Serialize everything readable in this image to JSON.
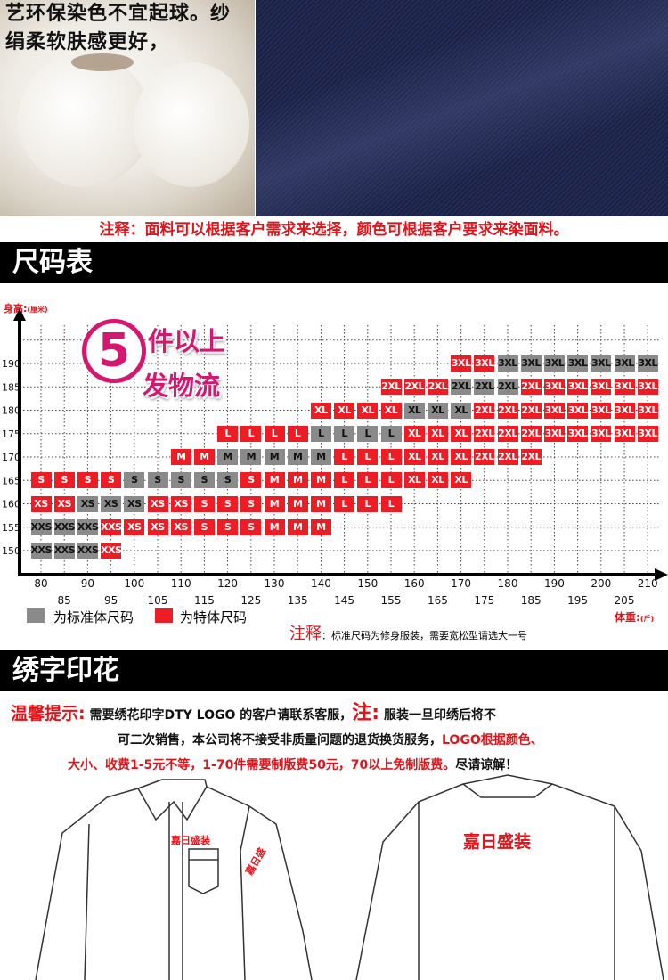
{
  "top": {
    "cotton_text_line1": "艺环保染色不宜起球。纱",
    "cotton_text_line2": "绢柔软肤感更好，",
    "fabric_note": "注释：面料可以根据客户需求来选择，颜色可根据客户要求来染面料。"
  },
  "size_section": {
    "title": "尺码表",
    "y_axis_label": "身高:",
    "y_axis_unit": "(厘米)",
    "x_axis_label": "体重:",
    "x_axis_unit": "(斤)",
    "promo_number": "5",
    "promo_line1": "件以上",
    "promo_line2": "发物流",
    "legend": [
      {
        "label": "为标准体尺码",
        "color": "#8a8a8a"
      },
      {
        "label": "为特体尺码",
        "color": "#ee1c24"
      }
    ],
    "note_label": "注释",
    "note_text": "：标准尺码为修身服装，需要宽松型请选大一号"
  },
  "chart_data": {
    "type": "table",
    "y_ticks": [
      190,
      185,
      180,
      175,
      170,
      165,
      160,
      155,
      150
    ],
    "x_ticks": [
      80,
      85,
      90,
      95,
      100,
      105,
      110,
      115,
      120,
      125,
      130,
      135,
      140,
      145,
      150,
      155,
      160,
      165,
      170,
      175,
      180,
      185,
      190,
      195,
      200,
      205,
      210
    ],
    "rows": [
      {
        "height": 190,
        "segments": [
          {
            "from": 170,
            "to": 175,
            "size": "3XL",
            "type": "special"
          },
          {
            "from": 180,
            "to": 210,
            "size": "3XL",
            "type": "standard"
          }
        ]
      },
      {
        "height": 185,
        "segments": [
          {
            "from": 155,
            "to": 165,
            "size": "2XL",
            "type": "special"
          },
          {
            "from": 170,
            "to": 180,
            "size": "2XL",
            "type": "standard"
          },
          {
            "from": 185,
            "to": 185,
            "size": "2XL",
            "type": "special"
          },
          {
            "from": 190,
            "to": 210,
            "size": "3XL",
            "type": "special"
          }
        ]
      },
      {
        "height": 180,
        "segments": [
          {
            "from": 140,
            "to": 155,
            "size": "XL",
            "type": "special"
          },
          {
            "from": 160,
            "to": 170,
            "size": "XL",
            "type": "standard"
          },
          {
            "from": 175,
            "to": 185,
            "size": "2XL",
            "type": "special"
          },
          {
            "from": 190,
            "to": 210,
            "size": "3XL",
            "type": "special"
          }
        ]
      },
      {
        "height": 175,
        "segments": [
          {
            "from": 120,
            "to": 135,
            "size": "L",
            "type": "special"
          },
          {
            "from": 140,
            "to": 155,
            "size": "L",
            "type": "standard"
          },
          {
            "from": 160,
            "to": 170,
            "size": "XL",
            "type": "special"
          },
          {
            "from": 175,
            "to": 185,
            "size": "2XL",
            "type": "special"
          },
          {
            "from": 190,
            "to": 210,
            "size": "3XL",
            "type": "special"
          }
        ]
      },
      {
        "height": 170,
        "segments": [
          {
            "from": 110,
            "to": 115,
            "size": "M",
            "type": "special"
          },
          {
            "from": 120,
            "to": 140,
            "size": "M",
            "type": "standard"
          },
          {
            "from": 145,
            "to": 155,
            "size": "L",
            "type": "special"
          },
          {
            "from": 160,
            "to": 170,
            "size": "XL",
            "type": "special"
          },
          {
            "from": 175,
            "to": 185,
            "size": "2XL",
            "type": "special"
          }
        ]
      },
      {
        "height": 165,
        "segments": [
          {
            "from": 80,
            "to": 95,
            "size": "S",
            "type": "special"
          },
          {
            "from": 100,
            "to": 120,
            "size": "S",
            "type": "standard"
          },
          {
            "from": 125,
            "to": 125,
            "size": "S",
            "type": "special"
          },
          {
            "from": 130,
            "to": 140,
            "size": "M",
            "type": "special"
          },
          {
            "from": 145,
            "to": 155,
            "size": "L",
            "type": "special"
          },
          {
            "from": 160,
            "to": 170,
            "size": "XL",
            "type": "special"
          }
        ]
      },
      {
        "height": 160,
        "segments": [
          {
            "from": 80,
            "to": 85,
            "size": "XS",
            "type": "special"
          },
          {
            "from": 90,
            "to": 100,
            "size": "XS",
            "type": "standard"
          },
          {
            "from": 105,
            "to": 110,
            "size": "XS",
            "type": "special"
          },
          {
            "from": 115,
            "to": 125,
            "size": "S",
            "type": "special"
          },
          {
            "from": 130,
            "to": 140,
            "size": "M",
            "type": "special"
          },
          {
            "from": 145,
            "to": 155,
            "size": "L",
            "type": "special"
          }
        ]
      },
      {
        "height": 155,
        "segments": [
          {
            "from": 80,
            "to": 90,
            "size": "XXS",
            "type": "standard"
          },
          {
            "from": 95,
            "to": 95,
            "size": "XXS",
            "type": "special"
          },
          {
            "from": 100,
            "to": 110,
            "size": "XS",
            "type": "special"
          },
          {
            "from": 115,
            "to": 125,
            "size": "S",
            "type": "special"
          },
          {
            "from": 130,
            "to": 140,
            "size": "M",
            "type": "special"
          }
        ]
      },
      {
        "height": 150,
        "segments": [
          {
            "from": 80,
            "to": 90,
            "size": "XXS",
            "type": "standard"
          },
          {
            "from": 95,
            "to": 95,
            "size": "XXS",
            "type": "special"
          }
        ]
      }
    ],
    "colors": {
      "standard": "#8a8a8a",
      "special": "#ee1c24"
    },
    "grid": true
  },
  "embroidery_section": {
    "title": "绣字印花",
    "tip_label": "温馨提示:",
    "tip_text1": "需要绣花印字DTY LOGO 的客户请联系客服，",
    "note_label": "注:",
    "tip_text2": "服装一旦印绣后将不",
    "tip_text3": "可二次销售，本公司将不接受非质量问题的退货换货服务，",
    "tip_red1": "LOGO根据颜色、",
    "tip_red2": "大小、收费1-5元不等，1-70件需要制版费50元，70以上免制版费。",
    "tip_end": "尽请谅解！",
    "front_logo": "嘉日盛装",
    "sleeve_logo": "嘉日盛",
    "back_logo": "嘉日盛装"
  }
}
